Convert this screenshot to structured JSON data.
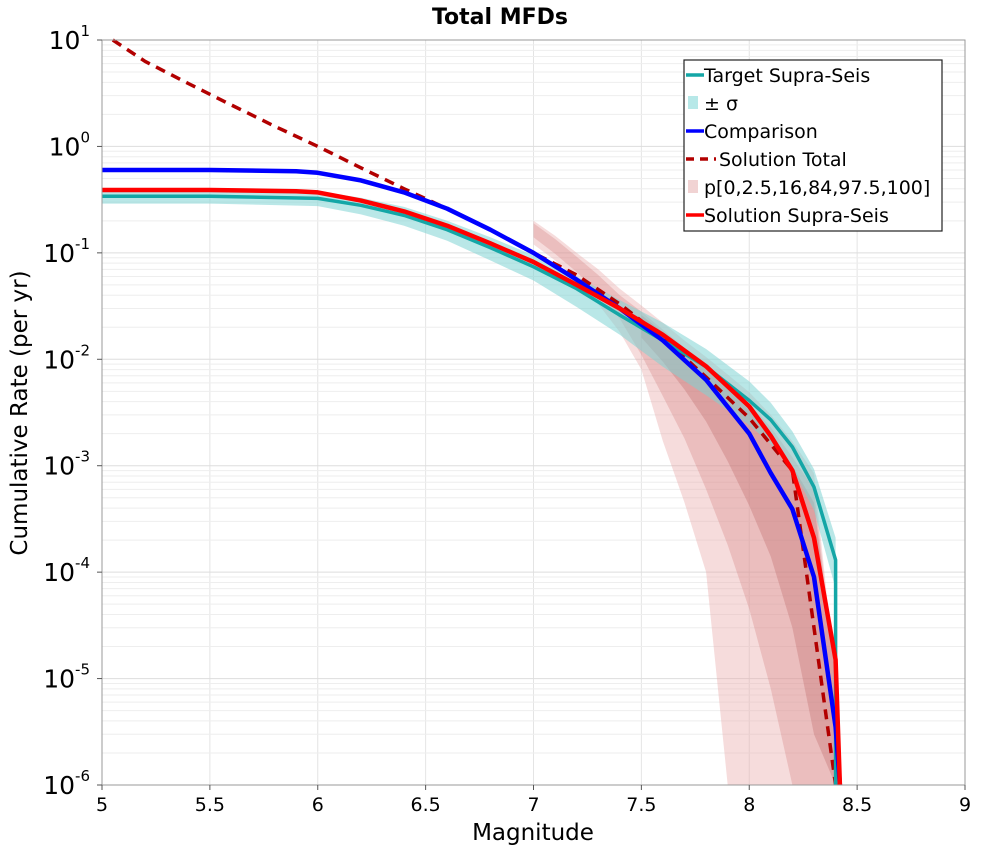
{
  "chart_data": {
    "type": "line",
    "title": "Total MFDs",
    "xlabel": "Magnitude",
    "ylabel": "Cumulative Rate (per yr)",
    "xlim": [
      5,
      9
    ],
    "ylim": [
      1e-06,
      10
    ],
    "yscale": "log",
    "grid": true,
    "legend_position": "top-right",
    "x_ticks": [
      5,
      5.5,
      6,
      6.5,
      7,
      7.5,
      8,
      8.5,
      9
    ],
    "x_tick_labels": [
      "5",
      "5.5",
      "6",
      "6.5",
      "7",
      "7.5",
      "8",
      "8.5",
      "9"
    ],
    "y_ticks": [
      {
        "value": 10,
        "base": "10",
        "exp": "1"
      },
      {
        "value": 1,
        "base": "10",
        "exp": "0"
      },
      {
        "value": 0.1,
        "base": "10",
        "exp": "-1"
      },
      {
        "value": 0.01,
        "base": "10",
        "exp": "-2"
      },
      {
        "value": 0.001,
        "base": "10",
        "exp": "-3"
      },
      {
        "value": 0.0001,
        "base": "10",
        "exp": "-4"
      },
      {
        "value": 1e-05,
        "base": "10",
        "exp": "-5"
      },
      {
        "value": 1e-06,
        "base": "10",
        "exp": "-6"
      }
    ],
    "bands": [
      {
        "name": "p[0,2.5,16,84,97.5,100] outer",
        "legend": "p[0,2.5,16,84,97.5,100]",
        "color": "#e8a8a8",
        "opacity": 0.4,
        "x": [
          7.0,
          7.1,
          7.2,
          7.3,
          7.4,
          7.5,
          7.6,
          7.7,
          7.8,
          7.9,
          8.0,
          8.1,
          8.2,
          8.3,
          8.4,
          8.42
        ],
        "upper": [
          0.2,
          0.145,
          0.1,
          0.07,
          0.046,
          0.032,
          0.022,
          0.015,
          0.0105,
          0.0072,
          0.0049,
          0.003,
          0.0017,
          0.00085,
          1e-05,
          1e-06
        ],
        "lower": [
          0.12,
          0.085,
          0.056,
          0.033,
          0.018,
          0.008,
          0.0017,
          0.00045,
          0.0001,
          1e-06,
          1e-06,
          1e-06,
          1e-06,
          1e-06,
          1e-06,
          1e-06
        ]
      },
      {
        "name": "p[0,2.5,16,84,97.5,100] middle",
        "color": "#d88888",
        "opacity": 0.35,
        "x": [
          7.0,
          7.1,
          7.2,
          7.3,
          7.4,
          7.5,
          7.6,
          7.7,
          7.8,
          7.9,
          8.0,
          8.1,
          8.2,
          8.3,
          8.4,
          8.42
        ],
        "upper": [
          0.19,
          0.135,
          0.092,
          0.062,
          0.04,
          0.028,
          0.019,
          0.0128,
          0.0087,
          0.0058,
          0.0038,
          0.0023,
          0.0012,
          0.0006,
          1e-05,
          1e-06
        ],
        "lower": [
          0.14,
          0.098,
          0.066,
          0.042,
          0.024,
          0.011,
          0.0045,
          0.0018,
          0.0006,
          0.00018,
          4.5e-05,
          8e-06,
          1e-06,
          1e-06,
          1e-06,
          1e-06
        ]
      },
      {
        "name": "p[0,2.5,16,84,97.5,100] inner",
        "color": "#b86060",
        "opacity": 0.3,
        "x": [
          7.5,
          7.6,
          7.7,
          7.8,
          7.9,
          8.0,
          8.1,
          8.2,
          8.3,
          8.4,
          8.42
        ],
        "upper": [
          0.026,
          0.018,
          0.012,
          0.0081,
          0.0053,
          0.0033,
          0.0019,
          0.001,
          0.00045,
          1e-05,
          1e-06
        ],
        "lower": [
          0.016,
          0.0095,
          0.0052,
          0.0026,
          0.0011,
          0.00042,
          0.00014,
          3e-05,
          3e-06,
          1e-06,
          1e-06
        ]
      },
      {
        "name": "Target Supra-Seis ± σ",
        "legend": "± σ",
        "color": "#7fd4d4",
        "opacity": 0.55,
        "x": [
          5.0,
          5.5,
          6.0,
          6.2,
          6.4,
          6.6,
          6.8,
          7.0,
          7.2,
          7.4,
          7.6,
          7.8,
          8.0,
          8.1,
          8.2,
          8.3,
          8.4
        ],
        "upper": [
          0.4,
          0.4,
          0.38,
          0.33,
          0.27,
          0.2,
          0.14,
          0.095,
          0.06,
          0.036,
          0.022,
          0.0125,
          0.0062,
          0.0039,
          0.0021,
          0.00093,
          0.00021
        ],
        "lower": [
          0.29,
          0.29,
          0.275,
          0.23,
          0.18,
          0.13,
          0.085,
          0.055,
          0.031,
          0.017,
          0.0085,
          0.0046,
          0.0024,
          0.0016,
          0.00095,
          0.00038,
          7e-05
        ]
      }
    ],
    "series": [
      {
        "name": "Solution Total",
        "color": "#b20000",
        "dash": "10,7",
        "width": 3.5,
        "x": [
          5.05,
          5.2,
          5.4,
          5.6,
          5.8,
          6.0,
          6.2,
          6.4,
          6.6,
          6.8,
          7.0,
          7.2,
          7.4,
          7.6,
          7.8,
          8.0,
          8.2,
          8.4
        ],
        "y": [
          10,
          6.3,
          3.9,
          2.45,
          1.55,
          1.0,
          0.63,
          0.4,
          0.26,
          0.165,
          0.1,
          0.062,
          0.033,
          0.016,
          0.0068,
          0.0028,
          0.0009,
          1e-06
        ]
      },
      {
        "name": "Target Supra-Seis",
        "color": "#14a6a6",
        "width": 3.5,
        "x": [
          5.0,
          5.5,
          6.0,
          6.2,
          6.4,
          6.6,
          6.8,
          7.0,
          7.2,
          7.4,
          7.6,
          7.8,
          8.0,
          8.1,
          8.2,
          8.3,
          8.4,
          8.4
        ],
        "y": [
          0.34,
          0.34,
          0.325,
          0.28,
          0.225,
          0.165,
          0.112,
          0.074,
          0.046,
          0.026,
          0.015,
          0.0085,
          0.0041,
          0.0027,
          0.0015,
          0.00063,
          0.00013,
          1e-06
        ]
      },
      {
        "name": "Comparison",
        "color": "#0000ff",
        "width": 4.5,
        "x": [
          5.0,
          5.5,
          5.9,
          6.0,
          6.2,
          6.4,
          6.6,
          6.8,
          7.0,
          7.2,
          7.4,
          7.6,
          7.8,
          8.0,
          8.1,
          8.2,
          8.3,
          8.4,
          8.42
        ],
        "y": [
          0.6,
          0.6,
          0.585,
          0.565,
          0.48,
          0.37,
          0.26,
          0.165,
          0.1,
          0.056,
          0.03,
          0.015,
          0.0064,
          0.002,
          0.00085,
          0.00039,
          9e-05,
          3.5e-06,
          1e-06
        ]
      },
      {
        "name": "Solution Supra-Seis",
        "color": "#ff0000",
        "width": 4.5,
        "x": [
          5.0,
          5.5,
          5.9,
          6.0,
          6.2,
          6.4,
          6.6,
          6.8,
          7.0,
          7.2,
          7.4,
          7.6,
          7.8,
          8.0,
          8.1,
          8.2,
          8.3,
          8.4,
          8.42
        ],
        "y": [
          0.39,
          0.39,
          0.38,
          0.37,
          0.31,
          0.245,
          0.18,
          0.123,
          0.082,
          0.05,
          0.03,
          0.017,
          0.0086,
          0.0036,
          0.0019,
          0.0009,
          0.00021,
          1.5e-05,
          1e-06
        ]
      }
    ],
    "legend": [
      {
        "label": "Target Supra-Seis",
        "type": "line",
        "color": "#14a6a6",
        "dash": ""
      },
      {
        "label": "± σ",
        "type": "patch",
        "color": "#b7e8e8",
        "dash": ""
      },
      {
        "label": "Comparison",
        "type": "line",
        "color": "#0000ff",
        "dash": ""
      },
      {
        "label": "Solution Total",
        "type": "line",
        "color": "#b20000",
        "dash": "8,6"
      },
      {
        "label": "p[0,2.5,16,84,97.5,100]",
        "type": "patch",
        "color": "#f1d3d3",
        "dash": ""
      },
      {
        "label": "Solution Supra-Seis",
        "type": "line",
        "color": "#ff0000",
        "dash": ""
      }
    ]
  }
}
